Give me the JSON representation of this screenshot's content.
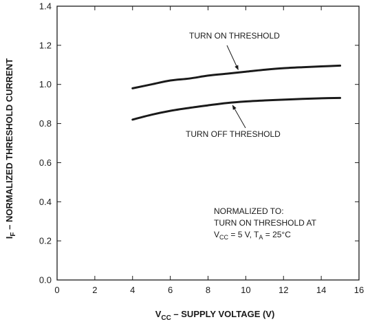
{
  "chart_data": {
    "type": "line",
    "title": "",
    "xlabel_main": "V",
    "xlabel_sub": "CC",
    "xlabel_rest": " – SUPPLY  VOLTAGE (V)",
    "ylabel_main": "I",
    "ylabel_sub": "F",
    "ylabel_rest": " – NORMALIZED THRESHOLD CURRENT",
    "xlim": [
      0,
      16
    ],
    "ylim": [
      0.0,
      1.4
    ],
    "x_ticks": [
      0,
      2,
      4,
      6,
      8,
      10,
      12,
      14,
      16
    ],
    "x_tick_labels": [
      "0",
      "2",
      "4",
      "6",
      "8",
      "10",
      "12",
      "14",
      "16"
    ],
    "y_ticks": [
      0.0,
      0.2,
      0.4,
      0.6,
      0.8,
      1.0,
      1.2,
      1.4
    ],
    "y_tick_labels": [
      "0.0",
      "0.2",
      "0.4",
      "0.6",
      "0.8",
      "1.0",
      "1.2",
      "1.4"
    ],
    "grid": false,
    "series": [
      {
        "name": "TURN ON THRESHOLD",
        "x": [
          4,
          5,
          6,
          7,
          8,
          9,
          10,
          11,
          12,
          13,
          14,
          15
        ],
        "y": [
          0.98,
          1.0,
          1.02,
          1.03,
          1.045,
          1.055,
          1.065,
          1.075,
          1.083,
          1.088,
          1.092,
          1.096
        ]
      },
      {
        "name": "TURN OFF THRESHOLD",
        "x": [
          4,
          5,
          6,
          7,
          8,
          9,
          10,
          11,
          12,
          13,
          14,
          15
        ],
        "y": [
          0.82,
          0.845,
          0.865,
          0.88,
          0.893,
          0.905,
          0.913,
          0.918,
          0.922,
          0.926,
          0.929,
          0.931
        ]
      }
    ],
    "annotations": [
      {
        "text": "TURN ON THRESHOLD",
        "target_series": 0,
        "target_x": 9.6
      },
      {
        "text": "TURN OFF THRESHOLD",
        "target_series": 1,
        "target_x": 9.3
      }
    ],
    "note": {
      "line1": "NORMALIZED TO:",
      "line2": "TURN ON THRESHOLD AT",
      "line3_v": "V",
      "line3_vsub": "CC",
      "line3_mid": " = 5 V, T",
      "line3_tsub": "A",
      "line3_end": " = 25°C"
    }
  }
}
